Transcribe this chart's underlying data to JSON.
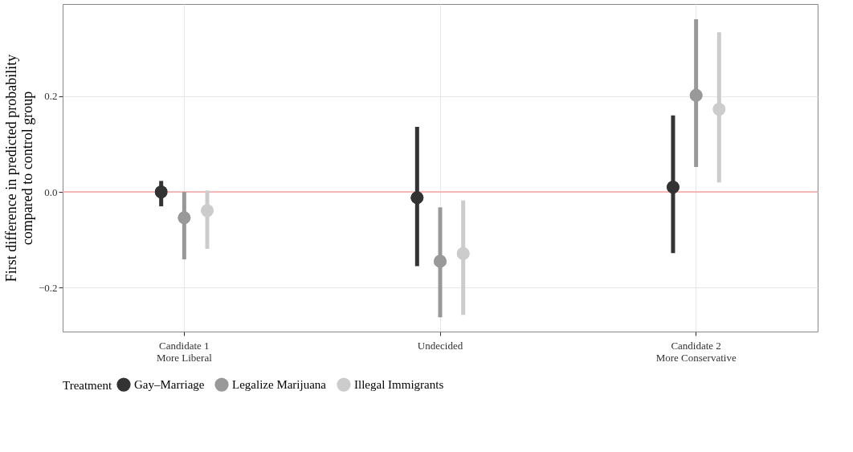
{
  "chart_data": {
    "type": "scatter",
    "ylabel": "First difference in predicted probability\ncompared to control group",
    "legend_title": "Treatment",
    "categories": [
      "Candidate 1\nMore Liberal",
      "Undecided",
      "Candidate 2\nMore Conservative"
    ],
    "series": [
      {
        "name": "Gay–Marriage",
        "color": "#333333",
        "values": [
          0.0,
          -0.012,
          0.01
        ],
        "errors": [
          [
            -0.03,
            0.023
          ],
          [
            -0.155,
            0.136
          ],
          [
            -0.128,
            0.16
          ]
        ]
      },
      {
        "name": "Legalize Marijuana",
        "color": "#999999",
        "values": [
          -0.054,
          -0.145,
          0.202
        ],
        "errors": [
          [
            -0.141,
            0.0
          ],
          [
            -0.262,
            -0.032
          ],
          [
            0.052,
            0.361
          ]
        ]
      },
      {
        "name": "Illegal Immigrants",
        "color": "#cccccc",
        "values": [
          -0.039,
          -0.129,
          0.173
        ],
        "errors": [
          [
            -0.119,
            0.003
          ],
          [
            -0.257,
            -0.018
          ],
          [
            0.02,
            0.334
          ]
        ]
      }
    ],
    "ylim": [
      -0.292,
      0.393
    ],
    "yticks": [
      {
        "value": -0.2,
        "label": "−0.2"
      },
      {
        "value": 0,
        "label": "0.0"
      },
      {
        "value": 0.2,
        "label": "0.2"
      }
    ],
    "ref_lines": [
      {
        "axis": "y",
        "value": 0,
        "color": "#f4a3a3"
      }
    ],
    "grid": true,
    "legend": "bottom",
    "marker": "circle"
  }
}
